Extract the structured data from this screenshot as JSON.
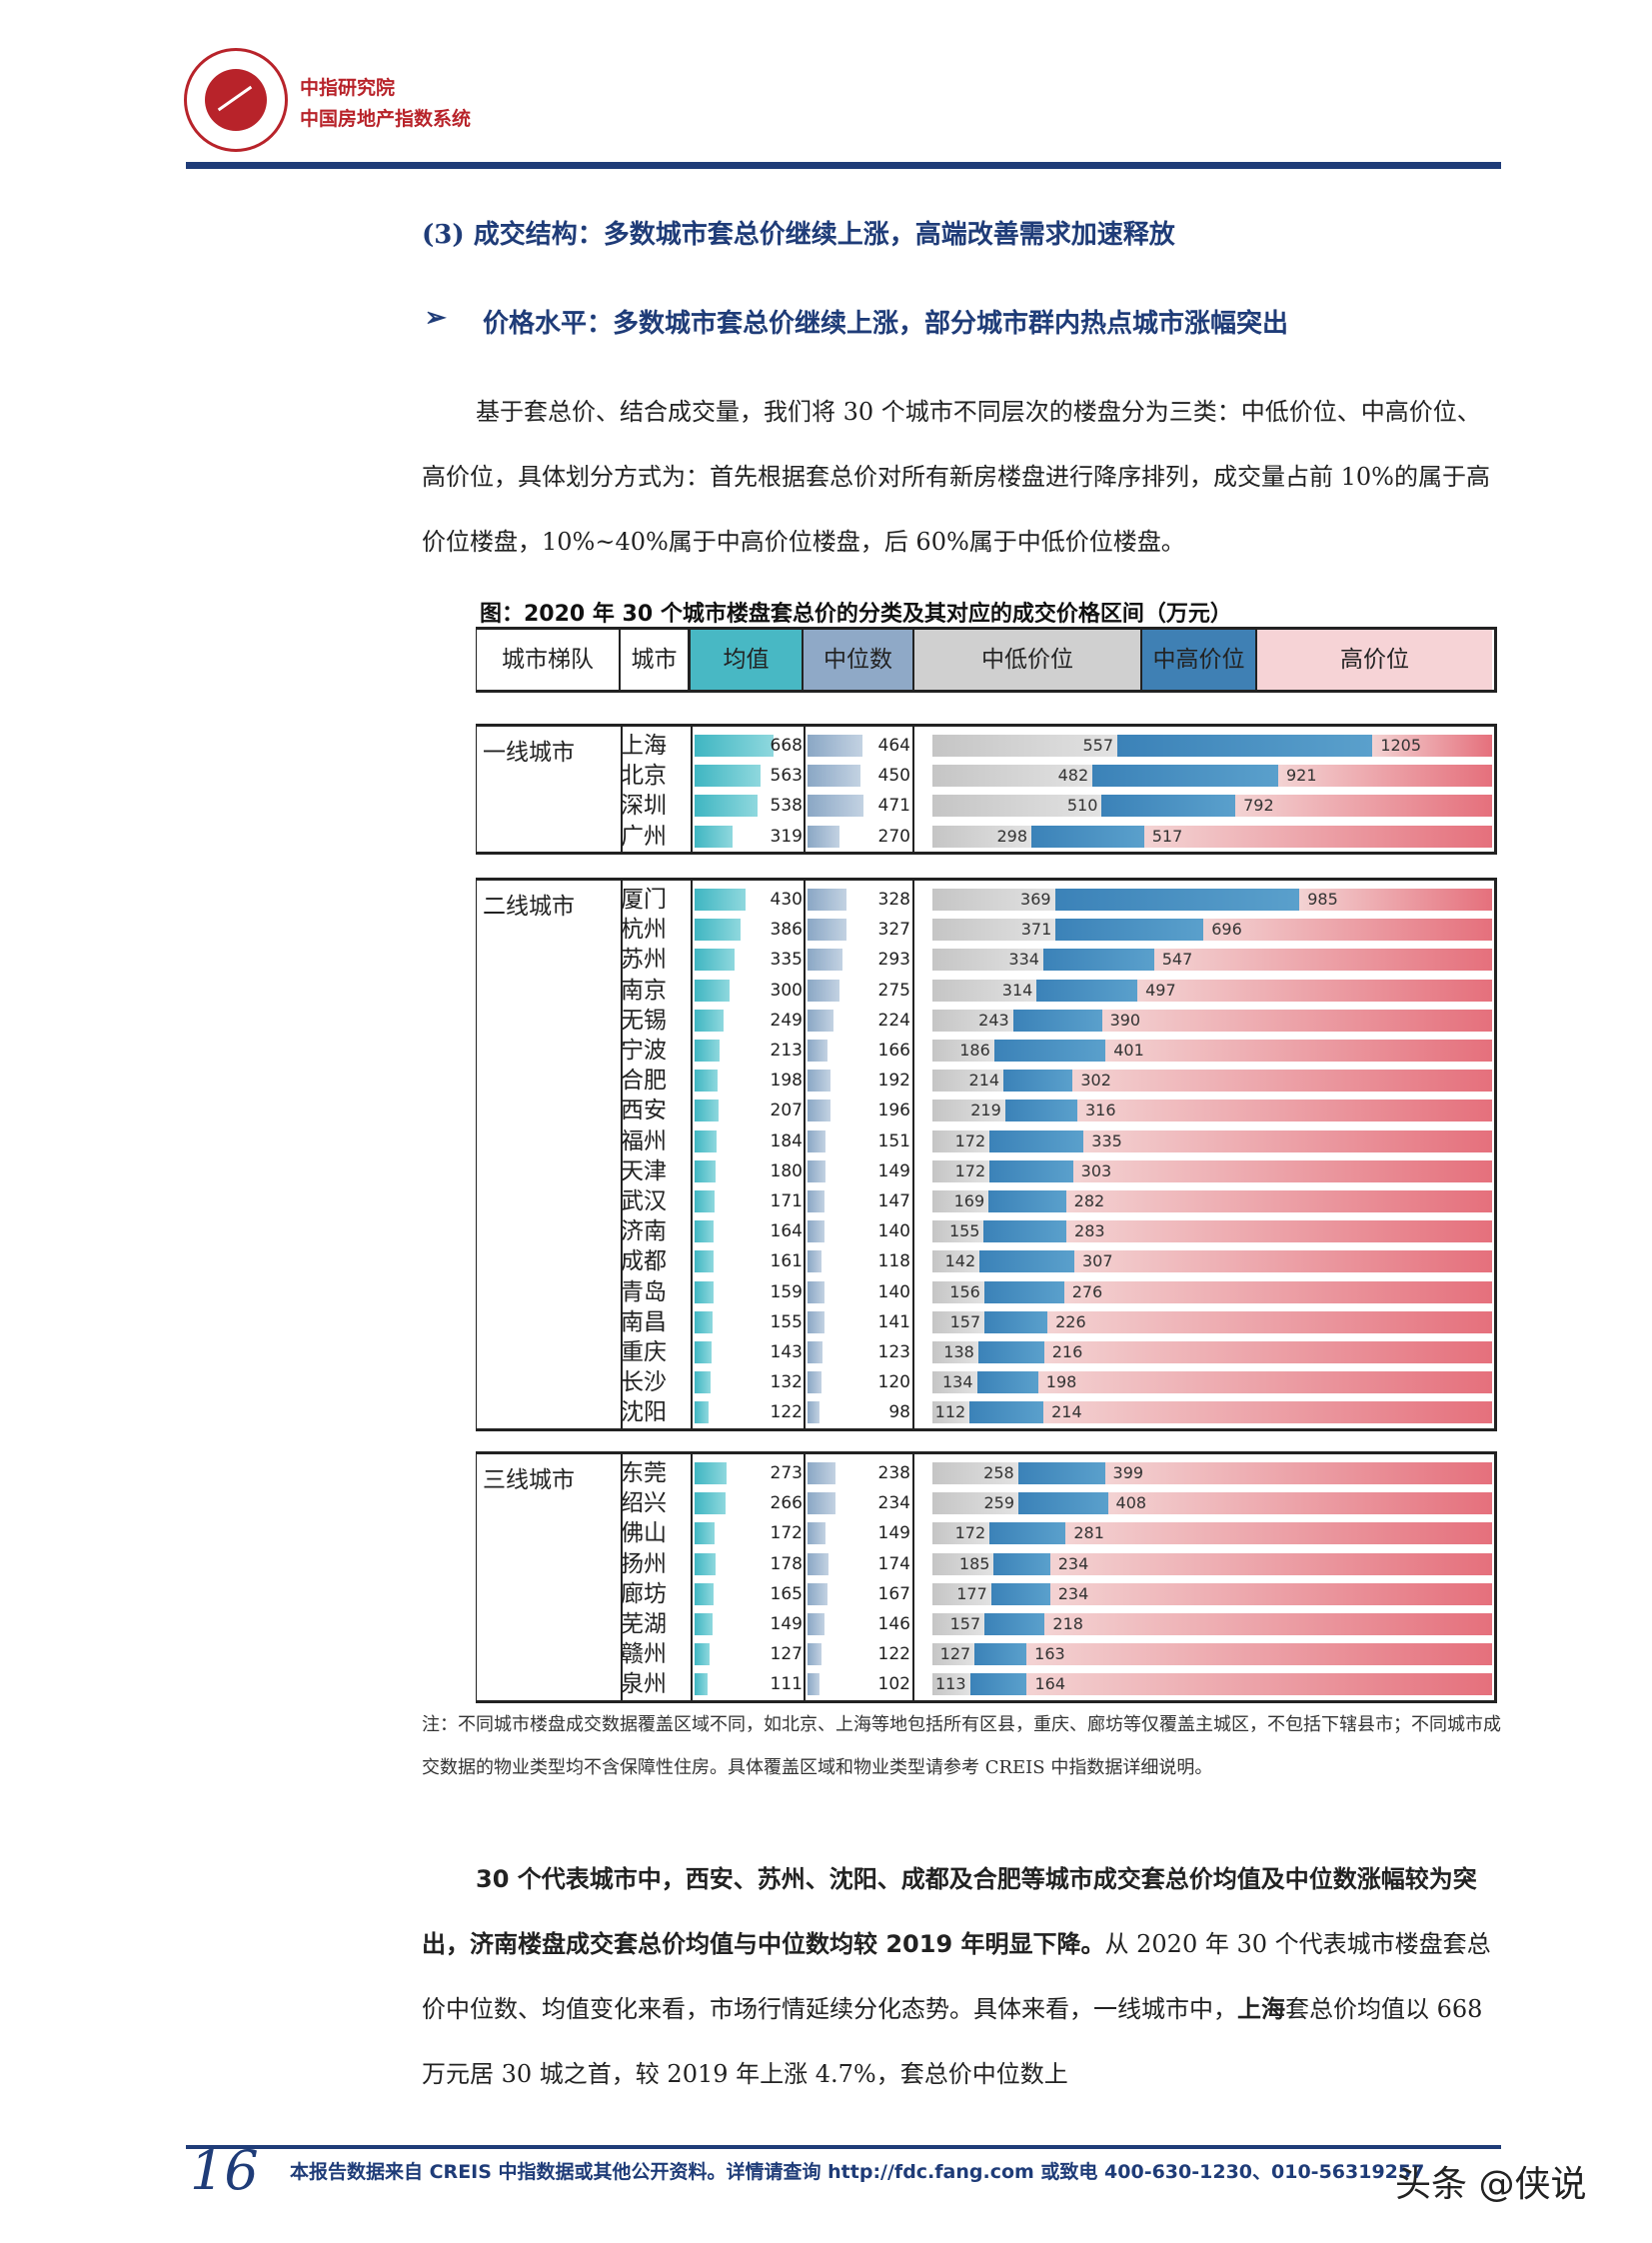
{
  "header": {
    "org_name": "中指研究院",
    "org_sub": "中国房地产指数系统"
  },
  "section_heading": "(3)  成交结构：多数城市套总价继续上涨，高端改善需求加速释放",
  "subheading": {
    "arrow": "➢",
    "text": "价格水平：多数城市套总价继续上涨，部分城市群内热点城市涨幅突出"
  },
  "intro": "基于套总价、结合成交量，我们将 30 个城市不同层次的楼盘分为三类：中低价位、中高价位、高价位，具体划分方式为：首先根据套总价对所有新房楼盘进行降序排列，成交量占前 10%的属于高价位楼盘，10%~40%属于中高价位楼盘，后 60%属于中低价位楼盘。",
  "figure_title": "图：2020 年 30 个城市楼盘套总价的分类及其对应的成交价格区间（万元）",
  "table_headers": [
    "城市梯队",
    "城市",
    "均值",
    "中位数",
    "中低价位",
    "中高价位",
    "高价位"
  ],
  "colors": {
    "mean": "#3fb6c2",
    "median": "#8aa7c5",
    "low": "#c5c5c5",
    "mid": "#3b82b8",
    "high": "#e5707c",
    "navy": "#1f3c78",
    "brand_red": "#b8232a"
  },
  "tiers": [
    {
      "name": "一线城市",
      "rows": [
        {
          "city": "上海",
          "mean": 668,
          "median": 464,
          "low": 557,
          "high": 1205
        },
        {
          "city": "北京",
          "mean": 563,
          "median": 450,
          "low": 482,
          "high": 921
        },
        {
          "city": "深圳",
          "mean": 538,
          "median": 471,
          "low": 510,
          "high": 792
        },
        {
          "city": "广州",
          "mean": 319,
          "median": 270,
          "low": 298,
          "high": 517
        }
      ]
    },
    {
      "name": "二线城市",
      "rows": [
        {
          "city": "厦门",
          "mean": 430,
          "median": 328,
          "low": 369,
          "high": 985
        },
        {
          "city": "杭州",
          "mean": 386,
          "median": 327,
          "low": 371,
          "high": 696
        },
        {
          "city": "苏州",
          "mean": 335,
          "median": 293,
          "low": 334,
          "high": 547
        },
        {
          "city": "南京",
          "mean": 300,
          "median": 275,
          "low": 314,
          "high": 497
        },
        {
          "city": "无锡",
          "mean": 249,
          "median": 224,
          "low": 243,
          "high": 390
        },
        {
          "city": "宁波",
          "mean": 213,
          "median": 166,
          "low": 186,
          "high": 401
        },
        {
          "city": "合肥",
          "mean": 198,
          "median": 192,
          "low": 214,
          "high": 302
        },
        {
          "city": "西安",
          "mean": 207,
          "median": 196,
          "low": 219,
          "high": 316
        },
        {
          "city": "福州",
          "mean": 184,
          "median": 151,
          "low": 172,
          "high": 335
        },
        {
          "city": "天津",
          "mean": 180,
          "median": 149,
          "low": 172,
          "high": 303
        },
        {
          "city": "武汉",
          "mean": 171,
          "median": 147,
          "low": 169,
          "high": 282
        },
        {
          "city": "济南",
          "mean": 164,
          "median": 140,
          "low": 155,
          "high": 283
        },
        {
          "city": "成都",
          "mean": 161,
          "median": 118,
          "low": 142,
          "high": 307
        },
        {
          "city": "青岛",
          "mean": 159,
          "median": 140,
          "low": 156,
          "high": 276
        },
        {
          "city": "南昌",
          "mean": 155,
          "median": 141,
          "low": 157,
          "high": 226
        },
        {
          "city": "重庆",
          "mean": 143,
          "median": 123,
          "low": 138,
          "high": 216
        },
        {
          "city": "长沙",
          "mean": 132,
          "median": 120,
          "low": 134,
          "high": 198
        },
        {
          "city": "沈阳",
          "mean": 122,
          "median": 98,
          "low": 112,
          "high": 214
        }
      ]
    },
    {
      "name": "三线城市",
      "rows": [
        {
          "city": "东莞",
          "mean": 273,
          "median": 238,
          "low": 258,
          "high": 399
        },
        {
          "city": "绍兴",
          "mean": 266,
          "median": 234,
          "low": 259,
          "high": 408
        },
        {
          "city": "佛山",
          "mean": 172,
          "median": 149,
          "low": 172,
          "high": 281
        },
        {
          "city": "扬州",
          "mean": 178,
          "median": 174,
          "low": 185,
          "high": 234
        },
        {
          "city": "廊坊",
          "mean": 165,
          "median": 167,
          "low": 177,
          "high": 234
        },
        {
          "city": "芜湖",
          "mean": 149,
          "median": 146,
          "low": 157,
          "high": 218
        },
        {
          "city": "赣州",
          "mean": 127,
          "median": 122,
          "low": 127,
          "high": 163
        },
        {
          "city": "泉州",
          "mean": 111,
          "median": 102,
          "low": 113,
          "high": 164
        }
      ]
    }
  ],
  "note": "注：不同城市楼盘成交数据覆盖区域不同，如北京、上海等地包括所有区县，重庆、廊坊等仅覆盖主城区，不包括下辖县市；不同城市成交数据的物业类型均不含保障性住房。具体覆盖区域和物业类型请参考 CREIS 中指数据详细说明。",
  "para2_bold": "30 个代表城市中，西安、苏州、沈阳、成都及合肥等城市成交套总价均值及中位数涨幅较为突出，济南楼盘成交套总价均值与中位数均较 2019 年明显下降。",
  "para2_normal1": "从 2020 年 30 个代表城市楼盘套总价中位数、均值变化来看，市场行情延续分化态势。具体来看，一线城市中，",
  "para2_bold2": "上海",
  "para2_normal2": "套总价均值以 668 万元居 30 城之首，较 2019 年上涨 4.7%，套总价中位数上",
  "footer": {
    "page_number": "16",
    "text": "本报告数据来自 CREIS 中指数据或其他公开资料。详情请查询 http://fdc.fang.com 或致电 400-630-1230、010-56319257"
  },
  "watermark": "头条 @侠说"
}
